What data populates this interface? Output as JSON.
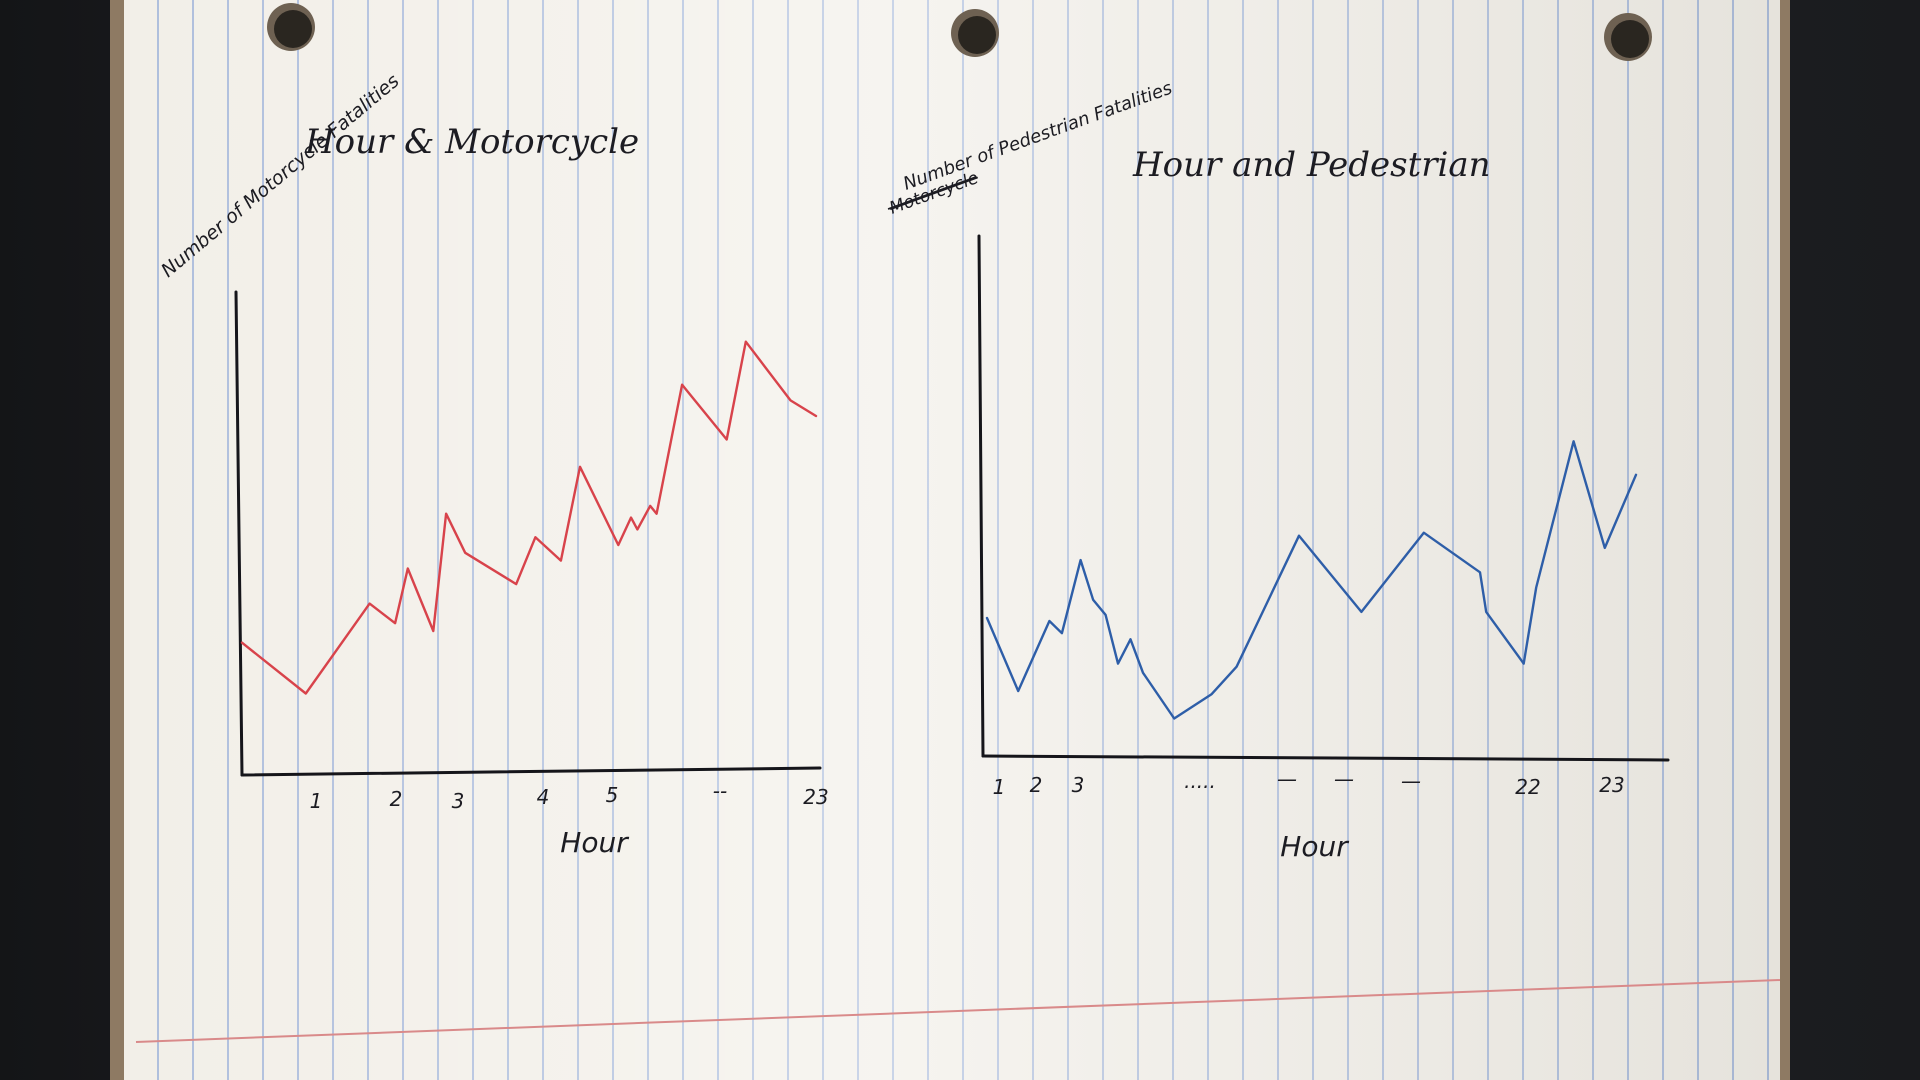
{
  "colors": {
    "paper": "#f2efe8",
    "rule_blue": "#7696d2",
    "margin_red": "#d98a8a",
    "ink": "#1c1c22",
    "motorcycle_line": "#d8434b",
    "pedestrian_line": "#2e5ea8"
  },
  "chart_data": [
    {
      "type": "line",
      "title": "Hour & Motorcycle",
      "ylabel": "Number of Motorcycle Fatalities",
      "xlabel": "Hour",
      "tick_labels": [
        "1",
        "2",
        "3",
        "4",
        "5",
        "--",
        "23"
      ],
      "grid": false,
      "series": [
        {
          "color": "#d8434b",
          "x": [
            0,
            1,
            2,
            2.4,
            2.6,
            3.0,
            3.2,
            3.5,
            4.3,
            4.6,
            5.0,
            5.3,
            5.9,
            6.1,
            6.2,
            6.4,
            6.5,
            6.9,
            7.6,
            7.9,
            8.6,
            9.0
          ],
          "y": [
            30,
            17,
            40,
            35,
            49,
            33,
            63,
            53,
            45,
            57,
            51,
            75,
            55,
            62,
            59,
            65,
            63,
            96,
            82,
            107,
            92,
            88
          ]
        }
      ]
    },
    {
      "type": "line",
      "title": "Hour and Pedestrian",
      "ylabel": "Number of Pedestrian Fatalities",
      "ylabel_struck": "Motorcycle",
      "xlabel": "Hour",
      "tick_labels": [
        "1",
        "2",
        "3",
        ".....",
        "—",
        "—",
        "—",
        "22",
        "23"
      ],
      "grid": false,
      "series": [
        {
          "color": "#2e5ea8",
          "x": [
            0,
            0.5,
            1.0,
            1.2,
            1.5,
            1.7,
            1.9,
            2.1,
            2.3,
            2.5,
            3.0,
            3.6,
            4.0,
            5.0,
            6.0,
            7.0,
            7.9,
            8.0,
            8.6,
            8.8,
            9.4,
            9.9,
            10.4
          ],
          "y": [
            45,
            21,
            44,
            40,
            64,
            51,
            46,
            30,
            38,
            27,
            12,
            20,
            29,
            72,
            47,
            73,
            60,
            47,
            30,
            55,
            103,
            68,
            92
          ]
        }
      ]
    }
  ]
}
